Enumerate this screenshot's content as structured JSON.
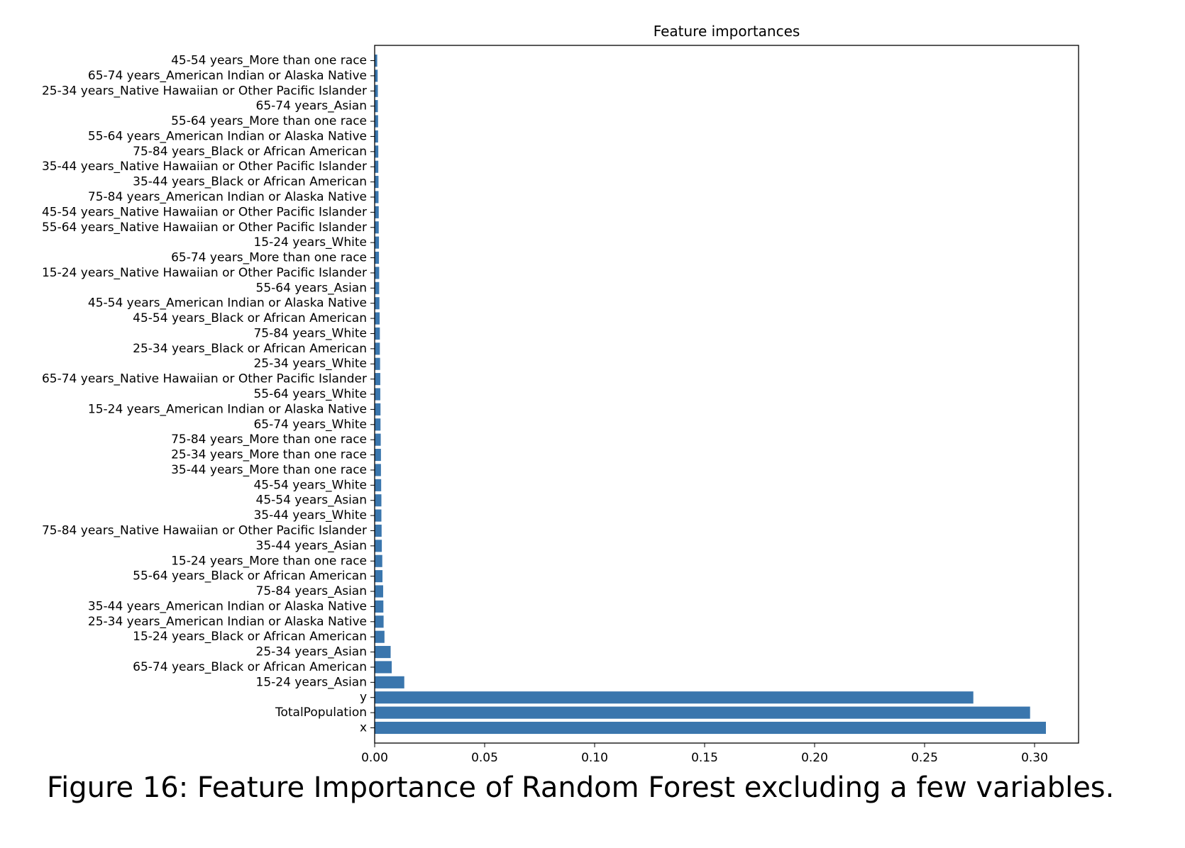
{
  "caption": "Figure 16: Feature Importance of Random Forest excluding a few variables.",
  "chart_data": {
    "type": "bar",
    "orientation": "horizontal",
    "title": "Feature importances",
    "xlabel": "",
    "ylabel": "",
    "xlim": [
      0,
      0.32
    ],
    "xticks": [
      0.0,
      0.05,
      0.1,
      0.15,
      0.2,
      0.25,
      0.3
    ],
    "xtick_labels": [
      "0.00",
      "0.05",
      "0.10",
      "0.15",
      "0.20",
      "0.25",
      "0.30"
    ],
    "grid": false,
    "bar_color": "#3a76ad",
    "categories": [
      "45-54 years_More than one race",
      "65-74 years_American Indian or Alaska Native",
      "25-34 years_Native Hawaiian or Other Pacific Islander",
      "65-74 years_Asian",
      "55-64 years_More than one race",
      "55-64 years_American Indian or Alaska Native",
      "75-84 years_Black or African American",
      "35-44 years_Native Hawaiian or Other Pacific Islander",
      "35-44 years_Black or African American",
      "75-84 years_American Indian or Alaska Native",
      "45-54 years_Native Hawaiian or Other Pacific Islander",
      "55-64 years_Native Hawaiian or Other Pacific Islander",
      "15-24 years_White",
      "65-74 years_More than one race",
      "15-24 years_Native Hawaiian or Other Pacific Islander",
      "55-64 years_Asian",
      "45-54 years_American Indian or Alaska Native",
      "45-54 years_Black or African American",
      "75-84 years_White",
      "25-34 years_Black or African American",
      "25-34 years_White",
      "65-74 years_Native Hawaiian or Other Pacific Islander",
      "55-64 years_White",
      "15-24 years_American Indian or Alaska Native",
      "65-74 years_White",
      "75-84 years_More than one race",
      "25-34 years_More than one race",
      "35-44 years_More than one race",
      "45-54 years_White",
      "45-54 years_Asian",
      "35-44 years_White",
      "75-84 years_Native Hawaiian or Other Pacific Islander",
      "35-44 years_Asian",
      "15-24 years_More than one race",
      "55-64 years_Black or African American",
      "75-84 years_Asian",
      "35-44 years_American Indian or Alaska Native",
      "25-34 years_American Indian or Alaska Native",
      "15-24 years_Black or African American",
      "25-34 years_Asian",
      "65-74 years_Black or African American",
      "15-24 years_Asian",
      "y",
      "TotalPopulation",
      "x"
    ],
    "values": [
      0.001,
      0.0012,
      0.0013,
      0.0013,
      0.0014,
      0.0014,
      0.0015,
      0.0015,
      0.0016,
      0.0016,
      0.0017,
      0.0017,
      0.0018,
      0.0018,
      0.0019,
      0.0019,
      0.002,
      0.0021,
      0.0022,
      0.0022,
      0.0023,
      0.0024,
      0.0024,
      0.0025,
      0.0025,
      0.0026,
      0.0027,
      0.0027,
      0.0028,
      0.0029,
      0.0029,
      0.003,
      0.0031,
      0.0033,
      0.0034,
      0.0037,
      0.0038,
      0.0039,
      0.0043,
      0.0071,
      0.0076,
      0.0133,
      0.272,
      0.2978,
      0.305
    ]
  }
}
